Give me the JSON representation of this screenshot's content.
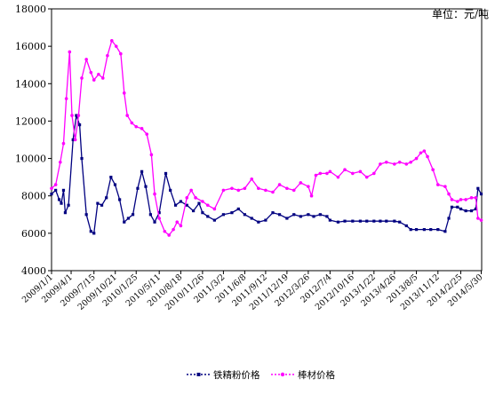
{
  "chart_data": {
    "type": "line",
    "unit_label": "单位：元/吨",
    "ylim": [
      4000,
      18000
    ],
    "yticks": [
      4000,
      6000,
      8000,
      10000,
      12000,
      14000,
      16000,
      18000
    ],
    "ytick_labels": [
      "4000",
      "6000",
      "8000",
      "10000",
      "12000",
      "14000",
      "16000",
      "18000"
    ],
    "xlim": [
      "2009-01-01",
      "2014-06-01"
    ],
    "xtick_labels": [
      {
        "x": "2009-01-01",
        "label": "2009/1/1"
      },
      {
        "x": "2009-04-01",
        "label": "2009/4/1"
      },
      {
        "x": "2009-07-15",
        "label": "2009/7/15"
      },
      {
        "x": "2009-10-21",
        "label": "2009/10/21"
      },
      {
        "x": "2010-01-25",
        "label": "2010/1/25"
      },
      {
        "x": "2010-05-11",
        "label": "2010/5/11"
      },
      {
        "x": "2010-08-18",
        "label": "2010/8/18"
      },
      {
        "x": "2010-11-26",
        "label": "2010/11/26"
      },
      {
        "x": "2011-03-02",
        "label": "2011/3/2"
      },
      {
        "x": "2011-06-08",
        "label": "2011/6/8"
      },
      {
        "x": "2011-09-12",
        "label": "2011/9/12"
      },
      {
        "x": "2011-12-19",
        "label": "2011/12/19"
      },
      {
        "x": "2012-03-26",
        "label": "2012/3/26"
      },
      {
        "x": "2012-07-04",
        "label": "2012/7/4"
      },
      {
        "x": "2012-10-16",
        "label": "2012/10/16"
      },
      {
        "x": "2013-01-22",
        "label": "2013/1/22"
      },
      {
        "x": "2013-04-26",
        "label": "2013/4/26"
      },
      {
        "x": "2013-08-05",
        "label": "2013/8/5"
      },
      {
        "x": "2013-11-12",
        "label": "2013/11/12"
      },
      {
        "x": "2014-02-25",
        "label": "2014/2/25"
      },
      {
        "x": "2014-05-30",
        "label": "2014/5/30"
      }
    ],
    "grid": false,
    "legend_position": "bottom-center",
    "series": [
      {
        "name": "铁精粉价格",
        "color": "#000080",
        "points": [
          [
            "2009-01-01",
            8100
          ],
          [
            "2009-01-20",
            8300
          ],
          [
            "2009-02-05",
            7800
          ],
          [
            "2009-02-15",
            7600
          ],
          [
            "2009-02-25",
            8300
          ],
          [
            "2009-03-05",
            7100
          ],
          [
            "2009-03-20",
            7500
          ],
          [
            "2009-04-10",
            11000
          ],
          [
            "2009-04-25",
            12300
          ],
          [
            "2009-05-10",
            11800
          ],
          [
            "2009-05-20",
            10000
          ],
          [
            "2009-06-10",
            7000
          ],
          [
            "2009-07-01",
            6100
          ],
          [
            "2009-07-15",
            6000
          ],
          [
            "2009-08-01",
            7600
          ],
          [
            "2009-08-20",
            7500
          ],
          [
            "2009-09-10",
            7900
          ],
          [
            "2009-10-01",
            9000
          ],
          [
            "2009-10-20",
            8600
          ],
          [
            "2009-11-10",
            7800
          ],
          [
            "2009-12-01",
            6600
          ],
          [
            "2009-12-20",
            6800
          ],
          [
            "2010-01-10",
            7000
          ],
          [
            "2010-02-01",
            8400
          ],
          [
            "2010-02-20",
            9300
          ],
          [
            "2010-03-10",
            8500
          ],
          [
            "2010-04-01",
            7000
          ],
          [
            "2010-04-20",
            6600
          ],
          [
            "2010-05-11",
            7100
          ],
          [
            "2010-06-10",
            9200
          ],
          [
            "2010-07-01",
            8300
          ],
          [
            "2010-07-25",
            7500
          ],
          [
            "2010-08-18",
            7700
          ],
          [
            "2010-09-15",
            7500
          ],
          [
            "2010-10-15",
            7200
          ],
          [
            "2010-11-10",
            7600
          ],
          [
            "2010-11-26",
            7100
          ],
          [
            "2010-12-20",
            6900
          ],
          [
            "2011-01-20",
            6700
          ],
          [
            "2011-03-02",
            7000
          ],
          [
            "2011-04-10",
            7100
          ],
          [
            "2011-05-10",
            7300
          ],
          [
            "2011-06-08",
            7000
          ],
          [
            "2011-07-10",
            6800
          ],
          [
            "2011-08-10",
            6600
          ],
          [
            "2011-09-12",
            6700
          ],
          [
            "2011-10-15",
            7100
          ],
          [
            "2011-11-15",
            7000
          ],
          [
            "2011-12-19",
            6800
          ],
          [
            "2012-01-20",
            7000
          ],
          [
            "2012-02-20",
            6900
          ],
          [
            "2012-03-26",
            7000
          ],
          [
            "2012-04-20",
            6900
          ],
          [
            "2012-05-20",
            7000
          ],
          [
            "2012-06-20",
            6900
          ],
          [
            "2012-07-04",
            6700
          ],
          [
            "2012-08-10",
            6600
          ],
          [
            "2012-09-10",
            6650
          ],
          [
            "2012-10-16",
            6650
          ],
          [
            "2012-11-20",
            6650
          ],
          [
            "2012-12-20",
            6650
          ],
          [
            "2013-01-22",
            6650
          ],
          [
            "2013-02-20",
            6650
          ],
          [
            "2013-03-20",
            6650
          ],
          [
            "2013-04-26",
            6650
          ],
          [
            "2013-05-20",
            6600
          ],
          [
            "2013-06-20",
            6400
          ],
          [
            "2013-07-10",
            6200
          ],
          [
            "2013-08-05",
            6200
          ],
          [
            "2013-09-10",
            6200
          ],
          [
            "2013-10-10",
            6200
          ],
          [
            "2013-11-12",
            6200
          ],
          [
            "2013-12-15",
            6100
          ],
          [
            "2014-01-01",
            6800
          ],
          [
            "2014-01-15",
            7400
          ],
          [
            "2014-02-10",
            7400
          ],
          [
            "2014-02-25",
            7300
          ],
          [
            "2014-03-20",
            7200
          ],
          [
            "2014-04-15",
            7200
          ],
          [
            "2014-05-05",
            7300
          ],
          [
            "2014-05-15",
            8400
          ],
          [
            "2014-05-30",
            8100
          ]
        ]
      },
      {
        "name": "棒材价格",
        "color": "#ff00ff",
        "points": [
          [
            "2009-01-01",
            8400
          ],
          [
            "2009-01-20",
            8600
          ],
          [
            "2009-02-10",
            9800
          ],
          [
            "2009-02-25",
            10800
          ],
          [
            "2009-03-10",
            13200
          ],
          [
            "2009-03-25",
            15700
          ],
          [
            "2009-04-05",
            12300
          ],
          [
            "2009-04-20",
            11000
          ],
          [
            "2009-05-05",
            12300
          ],
          [
            "2009-05-20",
            14300
          ],
          [
            "2009-06-10",
            15300
          ],
          [
            "2009-07-01",
            14600
          ],
          [
            "2009-07-15",
            14200
          ],
          [
            "2009-08-05",
            14500
          ],
          [
            "2009-08-25",
            14300
          ],
          [
            "2009-09-15",
            15500
          ],
          [
            "2009-10-05",
            16300
          ],
          [
            "2009-10-25",
            16000
          ],
          [
            "2009-11-15",
            15600
          ],
          [
            "2009-12-01",
            13500
          ],
          [
            "2009-12-15",
            12300
          ],
          [
            "2010-01-05",
            11900
          ],
          [
            "2010-01-25",
            11700
          ],
          [
            "2010-02-20",
            11600
          ],
          [
            "2010-03-15",
            11300
          ],
          [
            "2010-04-05",
            10200
          ],
          [
            "2010-04-20",
            8100
          ],
          [
            "2010-05-11",
            6800
          ],
          [
            "2010-06-05",
            6100
          ],
          [
            "2010-06-25",
            5900
          ],
          [
            "2010-07-15",
            6200
          ],
          [
            "2010-08-01",
            6600
          ],
          [
            "2010-08-18",
            6400
          ],
          [
            "2010-09-15",
            7900
          ],
          [
            "2010-10-05",
            8300
          ],
          [
            "2010-10-25",
            7900
          ],
          [
            "2010-11-26",
            7700
          ],
          [
            "2010-12-20",
            7500
          ],
          [
            "2011-01-20",
            7300
          ],
          [
            "2011-03-02",
            8300
          ],
          [
            "2011-04-10",
            8400
          ],
          [
            "2011-05-10",
            8300
          ],
          [
            "2011-06-08",
            8400
          ],
          [
            "2011-07-10",
            8900
          ],
          [
            "2011-08-10",
            8400
          ],
          [
            "2011-09-12",
            8300
          ],
          [
            "2011-10-15",
            8200
          ],
          [
            "2011-11-15",
            8600
          ],
          [
            "2011-12-19",
            8400
          ],
          [
            "2012-01-20",
            8300
          ],
          [
            "2012-02-20",
            8700
          ],
          [
            "2012-03-26",
            8500
          ],
          [
            "2012-04-10",
            8000
          ],
          [
            "2012-04-30",
            9100
          ],
          [
            "2012-05-20",
            9200
          ],
          [
            "2012-06-20",
            9200
          ],
          [
            "2012-07-04",
            9300
          ],
          [
            "2012-08-10",
            9000
          ],
          [
            "2012-09-10",
            9400
          ],
          [
            "2012-10-16",
            9200
          ],
          [
            "2012-11-20",
            9300
          ],
          [
            "2012-12-20",
            9000
          ],
          [
            "2013-01-22",
            9200
          ],
          [
            "2013-02-20",
            9700
          ],
          [
            "2013-03-20",
            9800
          ],
          [
            "2013-04-26",
            9700
          ],
          [
            "2013-05-20",
            9800
          ],
          [
            "2013-06-20",
            9700
          ],
          [
            "2013-07-10",
            9800
          ],
          [
            "2013-08-05",
            10000
          ],
          [
            "2013-08-25",
            10300
          ],
          [
            "2013-09-10",
            10400
          ],
          [
            "2013-09-25",
            10100
          ],
          [
            "2013-10-20",
            9400
          ],
          [
            "2013-11-12",
            8600
          ],
          [
            "2013-12-15",
            8500
          ],
          [
            "2014-01-01",
            8100
          ],
          [
            "2014-01-15",
            7800
          ],
          [
            "2014-02-10",
            7700
          ],
          [
            "2014-02-25",
            7800
          ],
          [
            "2014-03-20",
            7800
          ],
          [
            "2014-04-15",
            7900
          ],
          [
            "2014-05-05",
            7900
          ],
          [
            "2014-05-15",
            6800
          ],
          [
            "2014-05-30",
            6700
          ]
        ]
      }
    ]
  }
}
